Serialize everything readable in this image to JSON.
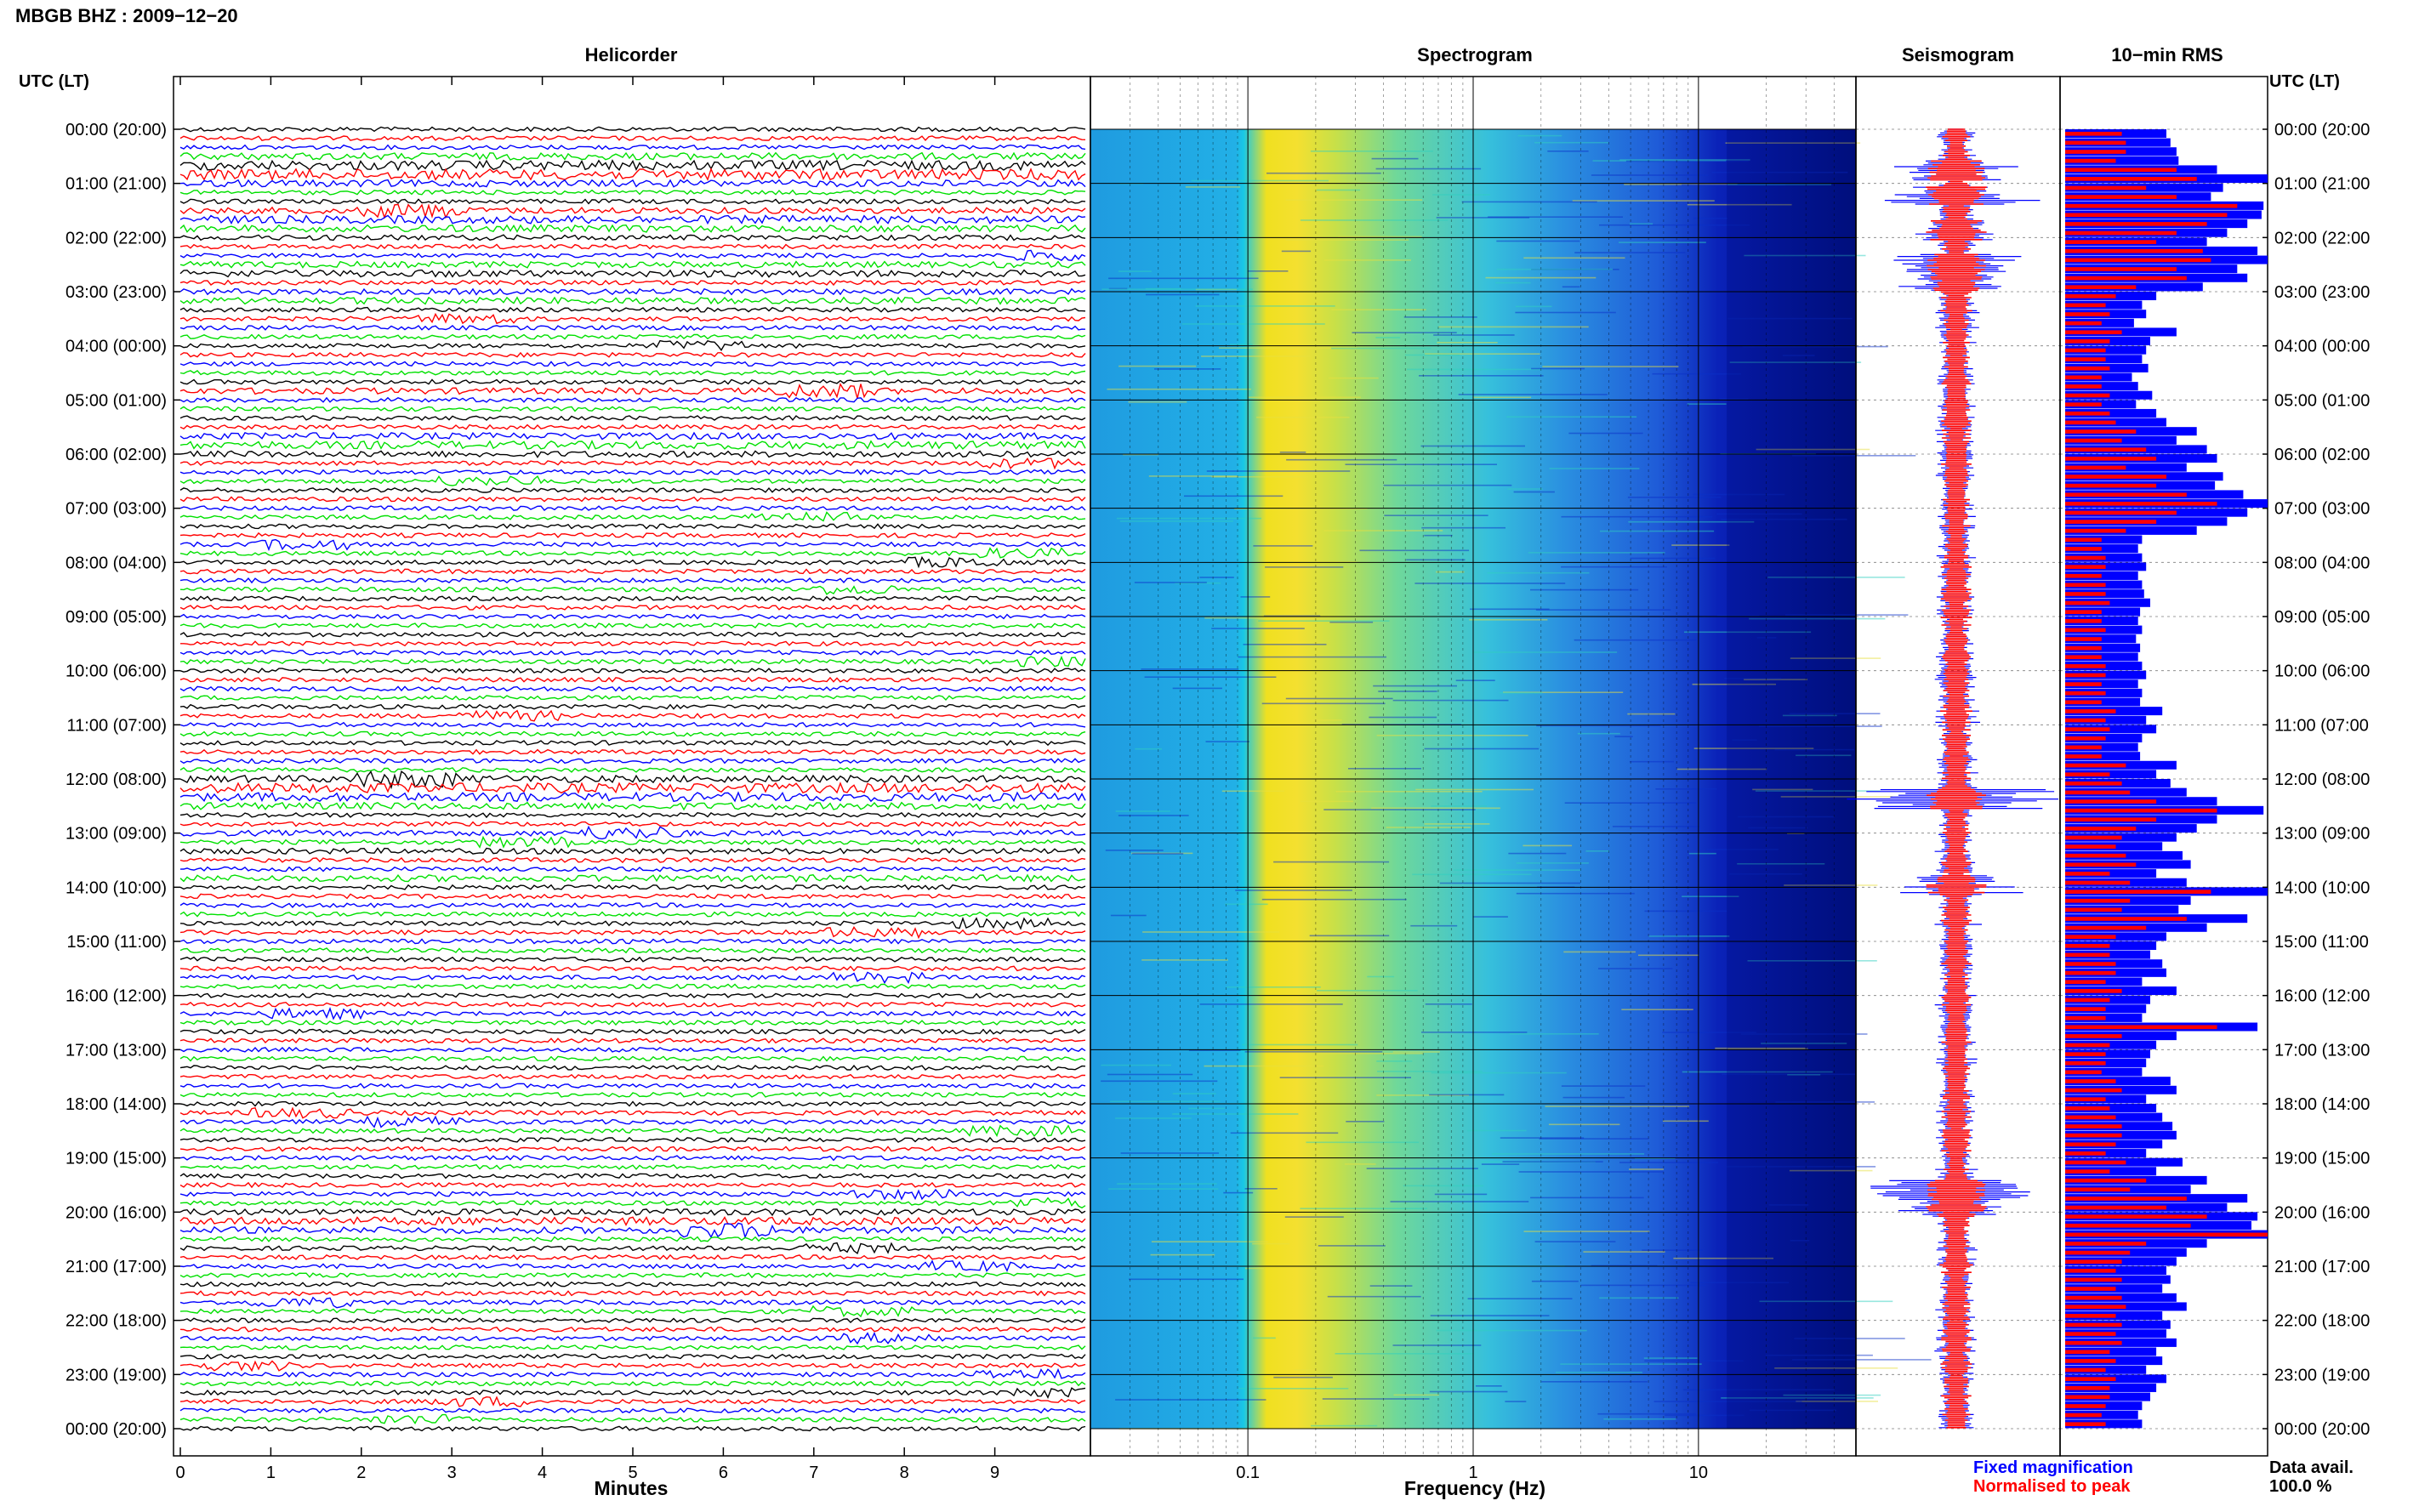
{
  "header": {
    "title": "MBGB BHZ : 2009−12−20",
    "utc_label_left": "UTC (LT)",
    "utc_label_right": "UTC (LT)"
  },
  "panels": {
    "helicorder": "Helicorder",
    "spectrogram": "Spectrogram",
    "seismogram": "Seismogram",
    "rms": "10−min RMS"
  },
  "time_labels": [
    "00:00 (20:00)",
    "01:00 (21:00)",
    "02:00 (22:00)",
    "03:00 (23:00)",
    "04:00 (00:00)",
    "05:00 (01:00)",
    "06:00 (02:00)",
    "07:00 (03:00)",
    "08:00 (04:00)",
    "09:00 (05:00)",
    "10:00 (06:00)",
    "11:00 (07:00)",
    "12:00 (08:00)",
    "13:00 (09:00)",
    "14:00 (10:00)",
    "15:00 (11:00)",
    "16:00 (12:00)",
    "17:00 (13:00)",
    "18:00 (14:00)",
    "19:00 (15:00)",
    "20:00 (16:00)",
    "21:00 (17:00)",
    "22:00 (18:00)",
    "23:00 (19:00)",
    "00:00 (20:00)"
  ],
  "time_labels_right": [
    "00:00 (20:00",
    "01:00 (21:00",
    "02:00 (22:00",
    "03:00 (23:00",
    "04:00 (00:00",
    "05:00 (01:00",
    "06:00 (02:00",
    "07:00 (03:00",
    "08:00 (04:00",
    "09:00 (05:00",
    "10:00 (06:00",
    "11:00 (07:00",
    "12:00 (08:00",
    "13:00 (09:00",
    "14:00 (10:00",
    "15:00 (11:00",
    "16:00 (12:00",
    "17:00 (13:00",
    "18:00 (14:00",
    "19:00 (15:00",
    "20:00 (16:00",
    "21:00 (17:00",
    "22:00 (18:00",
    "23:00 (19:00",
    "00:00 (20:00"
  ],
  "legend": {
    "fixed": "Fixed magnification",
    "normalised": "Normalised to peak",
    "avail_label": "Data avail.",
    "avail_value": "100.0 %"
  },
  "colors": {
    "trace_cycle": [
      "#000000",
      "#ff0000",
      "#0000ff",
      "#00e000"
    ],
    "fixed": "#0000ff",
    "normalised": "#ff0000"
  },
  "chart_data": [
    {
      "type": "line",
      "title": "Helicorder",
      "xlabel": "Minutes",
      "x_ticks": [
        "0",
        "1",
        "2",
        "3",
        "4",
        "5",
        "6",
        "7",
        "8",
        "9"
      ],
      "xlim": [
        0,
        10
      ],
      "traces_per_hour": 6,
      "rows": 144,
      "active_segments_minutes_from_midnight": [
        {
          "start": 10,
          "end": 40,
          "level": "high"
        },
        {
          "start": 150,
          "end": 200,
          "level": "high"
        },
        {
          "start": 720,
          "end": 780,
          "level": "high"
        },
        {
          "start": 1190,
          "end": 1210,
          "level": "high"
        }
      ]
    },
    {
      "type": "heatmap",
      "title": "Spectrogram",
      "xlabel": "Frequency (Hz)",
      "x_scale": "log",
      "x_ticks": [
        "0.1",
        "1",
        "10"
      ],
      "xlim": [
        0.02,
        50
      ],
      "colormap": "jet"
    },
    {
      "type": "line",
      "title": "Seismogram",
      "series": [
        {
          "name": "Fixed magnification",
          "color": "#0000ff"
        },
        {
          "name": "Normalised to peak",
          "color": "#ff0000"
        }
      ]
    },
    {
      "type": "bar",
      "title": "10−min RMS",
      "orientation": "horizontal",
      "rows": 144,
      "series": [
        {
          "name": "Fixed magnification",
          "color": "#0000ff",
          "values": [
            0.5,
            0.52,
            0.55,
            0.56,
            0.75,
            1.0,
            0.78,
            0.72,
            0.98,
            0.97,
            0.9,
            0.8,
            0.7,
            0.95,
            1.0,
            0.85,
            0.9,
            0.68,
            0.45,
            0.38,
            0.4,
            0.34,
            0.55,
            0.42,
            0.4,
            0.38,
            0.41,
            0.33,
            0.36,
            0.43,
            0.35,
            0.45,
            0.5,
            0.65,
            0.55,
            0.7,
            0.75,
            0.6,
            0.78,
            0.74,
            0.88,
            1.0,
            0.9,
            0.8,
            0.65,
            0.38,
            0.36,
            0.38,
            0.4,
            0.36,
            0.38,
            0.39,
            0.42,
            0.37,
            0.36,
            0.38,
            0.35,
            0.37,
            0.36,
            0.38,
            0.4,
            0.36,
            0.38,
            0.37,
            0.48,
            0.4,
            0.45,
            0.38,
            0.36,
            0.37,
            0.55,
            0.45,
            0.52,
            0.6,
            0.75,
            0.98,
            0.75,
            0.65,
            0.55,
            0.48,
            0.58,
            0.62,
            0.45,
            0.6,
            1.0,
            0.62,
            0.56,
            0.9,
            0.7,
            0.5,
            0.45,
            0.42,
            0.48,
            0.5,
            0.38,
            0.55,
            0.42,
            0.4,
            0.38,
            0.95,
            0.55,
            0.45,
            0.42,
            0.4,
            0.38,
            0.52,
            0.55,
            0.4,
            0.45,
            0.48,
            0.53,
            0.55,
            0.48,
            0.4,
            0.58,
            0.45,
            0.7,
            0.62,
            0.9,
            0.8,
            0.95,
            0.92,
            1.0,
            0.7,
            0.6,
            0.55,
            0.5,
            0.52,
            0.48,
            0.55,
            0.6,
            0.48,
            0.52,
            0.5,
            0.55,
            0.45,
            0.48,
            0.4,
            0.5,
            0.45,
            0.42,
            0.38,
            0.36,
            0.38
          ]
        },
        {
          "name": "Normalised to peak",
          "color": "#ff0000",
          "values": [
            0.28,
            0.3,
            0.3,
            0.25,
            0.55,
            0.65,
            0.4,
            0.55,
            0.85,
            0.8,
            0.7,
            0.55,
            0.45,
            0.68,
            0.72,
            0.55,
            0.6,
            0.35,
            0.25,
            0.2,
            0.22,
            0.18,
            0.28,
            0.22,
            0.2,
            0.2,
            0.22,
            0.18,
            0.18,
            0.22,
            0.18,
            0.22,
            0.25,
            0.35,
            0.28,
            0.4,
            0.45,
            0.3,
            0.5,
            0.45,
            0.6,
            0.75,
            0.55,
            0.45,
            0.3,
            0.18,
            0.18,
            0.2,
            0.2,
            0.18,
            0.2,
            0.2,
            0.22,
            0.18,
            0.18,
            0.2,
            0.18,
            0.18,
            0.18,
            0.2,
            0.2,
            0.18,
            0.2,
            0.18,
            0.25,
            0.2,
            0.22,
            0.2,
            0.18,
            0.18,
            0.3,
            0.22,
            0.28,
            0.32,
            0.45,
            0.75,
            0.45,
            0.35,
            0.28,
            0.25,
            0.3,
            0.35,
            0.22,
            0.32,
            0.72,
            0.32,
            0.28,
            0.6,
            0.4,
            0.25,
            0.22,
            0.22,
            0.25,
            0.25,
            0.2,
            0.28,
            0.22,
            0.2,
            0.2,
            0.75,
            0.28,
            0.22,
            0.2,
            0.2,
            0.18,
            0.25,
            0.28,
            0.2,
            0.22,
            0.25,
            0.28,
            0.28,
            0.25,
            0.2,
            0.3,
            0.22,
            0.4,
            0.32,
            0.6,
            0.5,
            0.7,
            0.62,
            1.0,
            0.4,
            0.32,
            0.28,
            0.25,
            0.28,
            0.25,
            0.28,
            0.3,
            0.25,
            0.28,
            0.25,
            0.28,
            0.22,
            0.25,
            0.2,
            0.25,
            0.22,
            0.22,
            0.2,
            0.18,
            0.2
          ]
        }
      ]
    }
  ]
}
